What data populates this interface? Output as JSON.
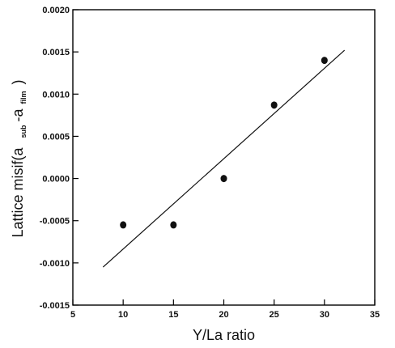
{
  "chart_data": {
    "type": "scatter",
    "title": "",
    "xlabel": "Y/La ratio",
    "ylabel": {
      "main": "Lattice misif(a",
      "sub1": "sub",
      "mid": "-a",
      "sub2": "film",
      "close": ")"
    },
    "xlim": [
      5,
      35
    ],
    "ylim": [
      -0.0015,
      0.002
    ],
    "x_ticks": [
      "5",
      "10",
      "15",
      "20",
      "25",
      "30",
      "35"
    ],
    "y_ticks": [
      "-0.0015",
      "-0.0010",
      "-0.0005",
      "0.0000",
      "0.0005",
      "0.0010",
      "0.0015",
      "0.0020"
    ],
    "grid": false,
    "legend": "none",
    "series": [
      {
        "kind": "points",
        "x": [
          10,
          15,
          20,
          25,
          30
        ],
        "y": [
          -0.00055,
          -0.00055,
          0.0,
          0.00087,
          0.0014
        ]
      },
      {
        "kind": "fit-line",
        "x": [
          8,
          32
        ],
        "y": [
          -0.00105,
          0.00152
        ]
      }
    ],
    "colors": {
      "marks": "#111111",
      "axes": "#000000"
    }
  }
}
